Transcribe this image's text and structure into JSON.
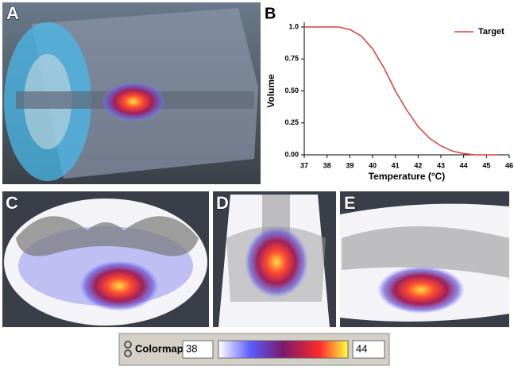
{
  "panel_labels": [
    "A",
    "B",
    "C",
    "D",
    "E"
  ],
  "chart_data": {
    "type": "line",
    "x_label": "Temperature (°C)",
    "y_label": "Volume",
    "x": [
      37,
      38,
      38.5,
      39,
      39.5,
      40,
      40.5,
      41,
      41.5,
      42,
      42.5,
      43,
      43.5,
      44,
      44.5,
      45,
      45.5
    ],
    "series": [
      {
        "name": "Target",
        "color": "#e23a3a",
        "values": [
          1,
          1,
          1,
          0.98,
          0.93,
          0.83,
          0.68,
          0.5,
          0.35,
          0.22,
          0.13,
          0.07,
          0.03,
          0.01,
          0,
          0,
          0
        ]
      }
    ],
    "xlim": [
      37,
      46
    ],
    "xticks": [
      37,
      38,
      39,
      40,
      41,
      42,
      43,
      44,
      45,
      46
    ],
    "ylim": [
      0,
      1
    ],
    "yticks": [
      {
        "value": 0,
        "label": "0.00"
      },
      {
        "value": 0.25,
        "label": "0.25"
      },
      {
        "value": 0.5,
        "label": "0.50"
      },
      {
        "value": 0.75,
        "label": "0.75"
      },
      {
        "value": 1,
        "label": "1.0"
      }
    ],
    "legend": "upper right"
  },
  "colormap": {
    "label": "Colormap:",
    "min": 38,
    "max": 44
  }
}
